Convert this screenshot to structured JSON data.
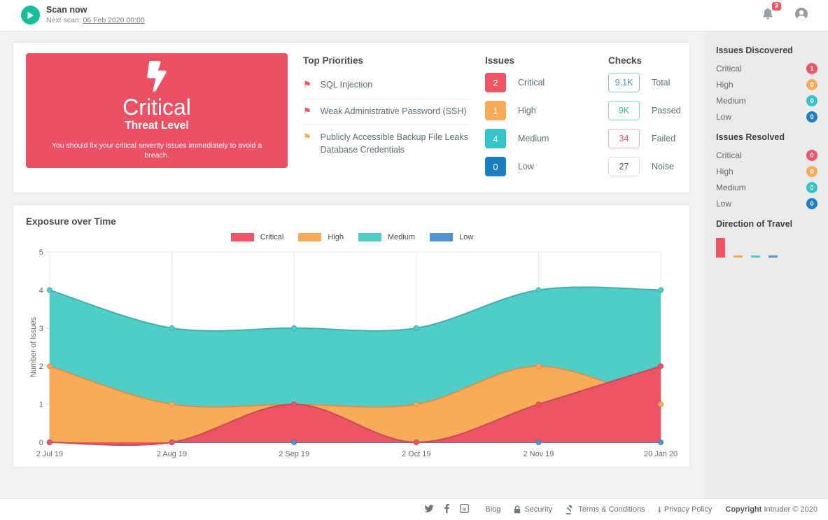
{
  "header": {
    "scan": {
      "title": "Scan now",
      "next_scan_label": "Next scan:",
      "next_scan_value": "06 Feb 2020 00:00"
    },
    "notification_count": "3"
  },
  "threat_card": {
    "level": "Critical",
    "subtitle": "Threat Level",
    "description": "You should fix your critical severity issues immediately to avoid a breach.",
    "bg_color": "#ec5064"
  },
  "top_priorities": {
    "title": "Top Priorities",
    "items": [
      {
        "label": "SQL Injection",
        "flag_color": "#ed5565"
      },
      {
        "label": "Weak Administrative Password (SSH)",
        "flag_color": "#ed5565"
      },
      {
        "label": "Publicly Accessible Backup File Leaks Database Credentials",
        "flag_color": "#f8ac59"
      }
    ]
  },
  "issues_summary": {
    "title": "Issues",
    "rows": [
      {
        "count": "2",
        "label": "Critical",
        "color": "#ed5565"
      },
      {
        "count": "1",
        "label": "High",
        "color": "#f8ac59"
      },
      {
        "count": "4",
        "label": "Medium",
        "color": "#35c4c6"
      },
      {
        "count": "0",
        "label": "Low",
        "color": "#1d7fc1"
      }
    ]
  },
  "checks_summary": {
    "title": "Checks",
    "rows": [
      {
        "count": "9.1K",
        "label": "Total",
        "color": "#4a90d9",
        "border": "#8fbae8"
      },
      {
        "count": "9K",
        "label": "Passed",
        "color": "#2eba93",
        "border": "#86d9c1"
      },
      {
        "count": "34",
        "label": "Failed",
        "color": "#ed5565",
        "border": "#f6b3ba"
      },
      {
        "count": "27",
        "label": "Noise",
        "color": "#555555",
        "border": "#dcdcdc"
      }
    ]
  },
  "chart_card": {
    "title": "Exposure over Time"
  },
  "chart_data": {
    "type": "area",
    "title": "Exposure over Time",
    "categories": [
      "2 Jul 19",
      "2 Aug 19",
      "2 Sep 19",
      "2 Oct 19",
      "2 Nov 19",
      "20 Jan 20"
    ],
    "series": [
      {
        "name": "Critical",
        "color": "#ed5565",
        "values": [
          0,
          0,
          1,
          0,
          1,
          2
        ]
      },
      {
        "name": "High",
        "color": "#f8ac59",
        "values": [
          2,
          1,
          1,
          1,
          2,
          1
        ]
      },
      {
        "name": "Medium",
        "color": "#4ecdc9",
        "values": [
          4,
          3,
          3,
          3,
          4,
          4
        ]
      },
      {
        "name": "Low",
        "color": "#5294cf",
        "values": [
          0,
          0,
          0,
          0,
          0,
          0
        ]
      }
    ],
    "xlabel": "",
    "ylabel": "Number of Issues",
    "ylim": [
      0,
      5
    ],
    "yticks": [
      0,
      1,
      2,
      3,
      4,
      5
    ],
    "legend_position": "top",
    "grid": "vertical"
  },
  "sidebar": {
    "issues_discovered": {
      "title": "Issues Discovered",
      "rows": [
        {
          "label": "Critical",
          "count": "1",
          "color": "#ed5565"
        },
        {
          "label": "High",
          "count": "0",
          "color": "#f8ac59"
        },
        {
          "label": "Medium",
          "count": "0",
          "color": "#35c4c6"
        },
        {
          "label": "Low",
          "count": "0",
          "color": "#1d7fc1"
        }
      ]
    },
    "issues_resolved": {
      "title": "Issues Resolved",
      "rows": [
        {
          "label": "Critical",
          "count": "0",
          "color": "#ed5565"
        },
        {
          "label": "High",
          "count": "0",
          "color": "#f8ac59"
        },
        {
          "label": "Medium",
          "count": "0",
          "color": "#35c4c6"
        },
        {
          "label": "Low",
          "count": "0",
          "color": "#1d7fc1"
        }
      ]
    },
    "direction_of_travel": {
      "title": "Direction of Travel",
      "bars": [
        {
          "label": "Critical",
          "value": 1,
          "color": "#ed5565"
        },
        {
          "label": "High",
          "value": 0,
          "color": "#f8ac59"
        },
        {
          "label": "Medium",
          "value": 0,
          "color": "#4ecdc9"
        },
        {
          "label": "Low",
          "value": 0,
          "color": "#5294cf"
        }
      ]
    }
  },
  "footer": {
    "social": [
      "twitter",
      "facebook",
      "linkedin"
    ],
    "links": [
      {
        "label": "Blog",
        "icon": "none"
      },
      {
        "label": "Security",
        "icon": "lock"
      },
      {
        "label": "Terms & Conditions",
        "icon": "gavel"
      },
      {
        "label": "Privacy Policy",
        "icon": "info"
      }
    ],
    "copyright_bold": "Copyright",
    "copyright_rest": "Intruder © 2020"
  }
}
